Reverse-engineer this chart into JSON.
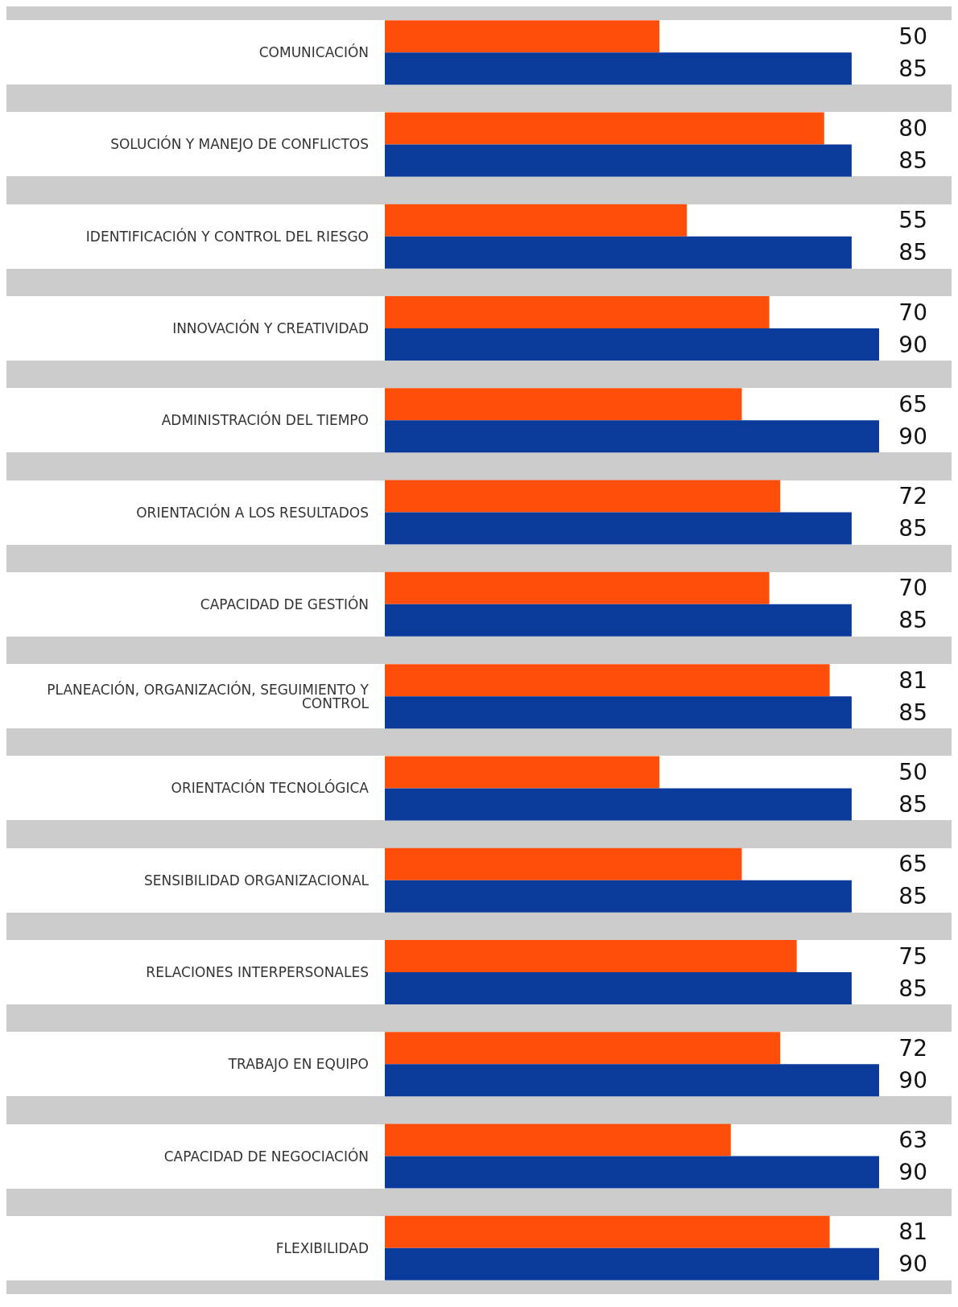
{
  "chart_data": {
    "type": "bar",
    "orientation": "horizontal",
    "categories": [
      "COMUNICACIÓN",
      "SOLUCIÓN Y MANEJO DE CONFLICTOS",
      "IDENTIFICACIÓN Y CONTROL DEL RIESGO",
      "INNOVACIÓN Y CREATIVIDAD",
      "ADMINISTRACIÓN DEL TIEMPO",
      "ORIENTACIÓN A LOS RESULTADOS",
      "CAPACIDAD DE GESTIÓN",
      "PLANEACIÓN, ORGANIZACIÓN, SEGUIMIENTO Y CONTROL",
      "ORIENTACIÓN TECNOLÓGICA",
      "SENSIBILIDAD ORGANIZACIONAL",
      "RELACIONES INTERPERSONALES",
      "TRABAJO EN EQUIPO",
      "CAPACIDAD DE NEGOCIACIÓN",
      "FLEXIBILIDAD"
    ],
    "series": [
      {
        "color": "#ff4e0a",
        "values": [
          50,
          80,
          55,
          70,
          65,
          72,
          70,
          81,
          50,
          65,
          75,
          72,
          63,
          81
        ]
      },
      {
        "color": "#0a3a9a",
        "values": [
          85,
          85,
          85,
          90,
          90,
          85,
          85,
          85,
          85,
          85,
          85,
          90,
          90,
          90
        ]
      }
    ],
    "data_labels": true
  }
}
